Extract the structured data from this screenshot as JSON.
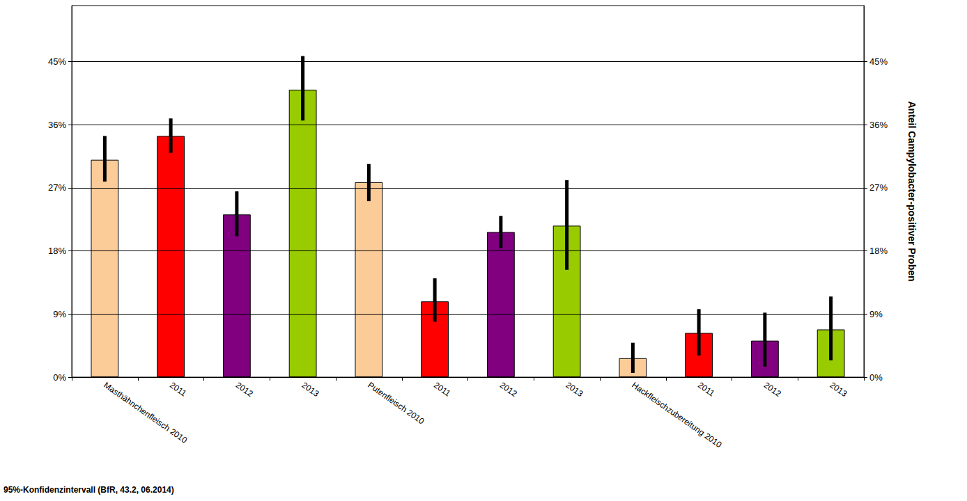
{
  "chart_data": {
    "type": "bar",
    "categories": [
      "Masthähnchenfleisch 2010",
      "2011",
      "2012",
      "2013",
      "Putenfleisch 2010",
      "2011",
      "2012",
      "2013",
      "Hackfleischzubereitung 2010",
      "2011",
      "2012",
      "2013"
    ],
    "values": [
      31.0,
      34.4,
      23.2,
      41.0,
      27.8,
      10.8,
      20.7,
      21.6,
      2.7,
      6.3,
      5.2,
      6.8
    ],
    "error_low": [
      27.9,
      32.0,
      20.1,
      36.6,
      25.1,
      7.9,
      18.4,
      15.3,
      0.6,
      3.1,
      1.5,
      2.4
    ],
    "error_high": [
      34.4,
      36.9,
      26.5,
      45.8,
      30.4,
      14.1,
      23.0,
      28.1,
      4.9,
      9.7,
      9.2,
      11.5
    ],
    "colors": [
      "#fbcb98",
      "#ff0000",
      "#800080",
      "#99cc00",
      "#fbcb98",
      "#ff0000",
      "#800080",
      "#99cc00",
      "#fbcb98",
      "#ff0000",
      "#800080",
      "#99cc00"
    ],
    "ylim": [
      0,
      53
    ],
    "yticks": [
      {
        "value": 0,
        "label": "0%"
      },
      {
        "value": 9,
        "label": "9%"
      },
      {
        "value": 18,
        "label": "18%"
      },
      {
        "value": 27,
        "label": "27%"
      },
      {
        "value": 36,
        "label": "36%"
      },
      {
        "value": 45,
        "label": "45%"
      }
    ],
    "y2lim": [
      0,
      53
    ],
    "y2ticks": [
      {
        "value": 0,
        "label": "0%"
      },
      {
        "value": 9,
        "label": "9%"
      },
      {
        "value": 18,
        "label": "18%"
      },
      {
        "value": 27,
        "label": "27%"
      },
      {
        "value": 36,
        "label": "36%"
      },
      {
        "value": 45,
        "label": "45%"
      }
    ],
    "y2_label": "Anteil Campylobacter-positiver Proben",
    "footnote": "95%-Konfidenzintervall (BfR, 43.2, 06.2014)",
    "grid": true
  }
}
